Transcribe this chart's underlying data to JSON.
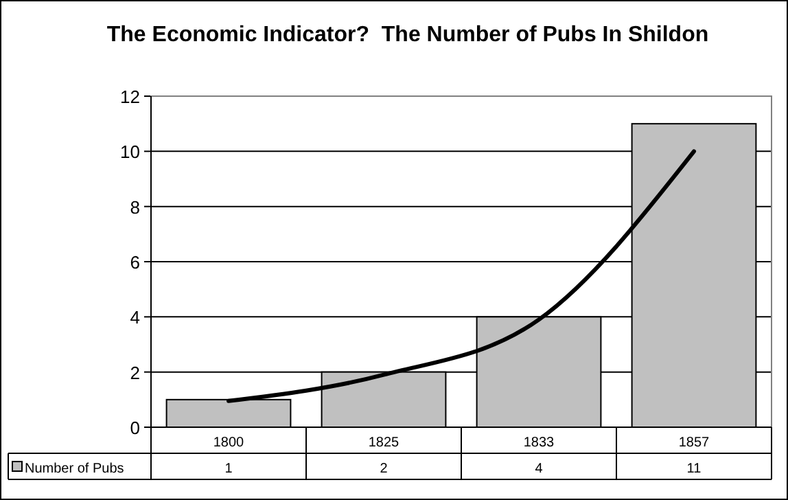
{
  "chart_data": {
    "type": "bar",
    "title": "The Economic Indicator?  The Number of Pubs In Shildon",
    "categories": [
      "1800",
      "1825",
      "1833",
      "1857"
    ],
    "series": [
      {
        "name": "Number of Pubs",
        "color": "#c0c0c0",
        "values": [
          1,
          2,
          4,
          11
        ],
        "value_labels": [
          "1",
          "2",
          "4",
          "11"
        ]
      },
      {
        "type": "line",
        "color": "#000000",
        "values": [
          0.95,
          1.9,
          3.9,
          10
        ]
      }
    ],
    "ylim": [
      0,
      12
    ],
    "yticks": [
      0,
      2,
      4,
      6,
      8,
      10,
      12
    ],
    "grid": "y",
    "legend": "bottom"
  }
}
